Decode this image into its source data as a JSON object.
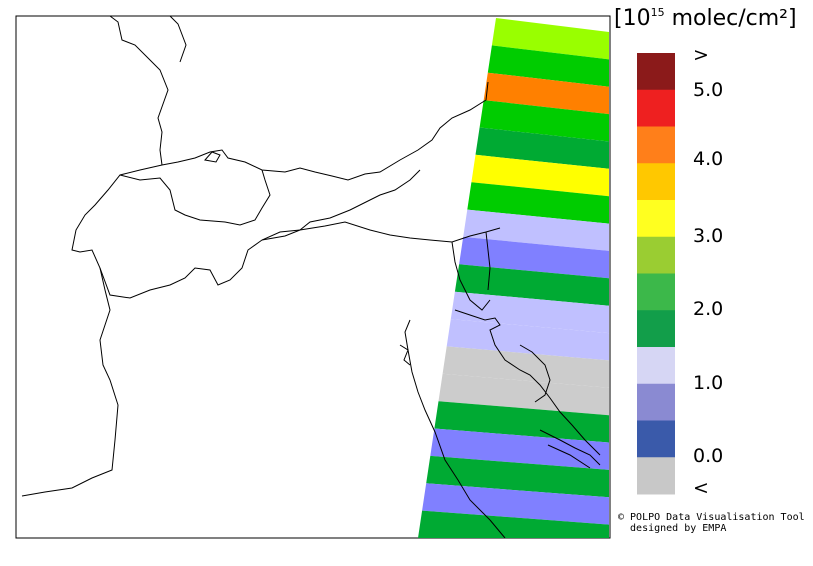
{
  "legend": {
    "unit_prefix": "[10",
    "unit_exponent": "15",
    "unit_suffix": " molec/cm²]",
    "ticks": [
      ">",
      "5.0",
      "4.0",
      "3.0",
      "2.0",
      "1.0",
      "0.0",
      "<"
    ],
    "colors": [
      "#8b1a1a",
      "#ee2020",
      "#ff7f1a",
      "#ffc800",
      "#ffff20",
      "#9acd32",
      "#3cb84a",
      "#129e4a",
      "#d6d6f4",
      "#8a8ad2",
      "#3a5aaa",
      "#c8c8c8"
    ]
  },
  "swath": {
    "color_map": {
      "lime": "#99ff00",
      "green": "#00cc00",
      "darkgreen": "#00aa33",
      "orange": "#ff8000",
      "yellow": "#ffff00",
      "lavender": "#c0c0ff",
      "blue": "#8080ff",
      "gray": "#cccccc"
    },
    "bands": [
      "lime",
      "green",
      "orange",
      "green",
      "darkgreen",
      "yellow",
      "green",
      "lavender",
      "blue",
      "darkgreen",
      "lavender",
      "lavender",
      "gray",
      "gray",
      "darkgreen",
      "blue",
      "darkgreen",
      "blue",
      "darkgreen"
    ]
  },
  "credit": {
    "line1": "© POLPO Data Visualisation Tool",
    "line2": "  designed by EMPA"
  }
}
